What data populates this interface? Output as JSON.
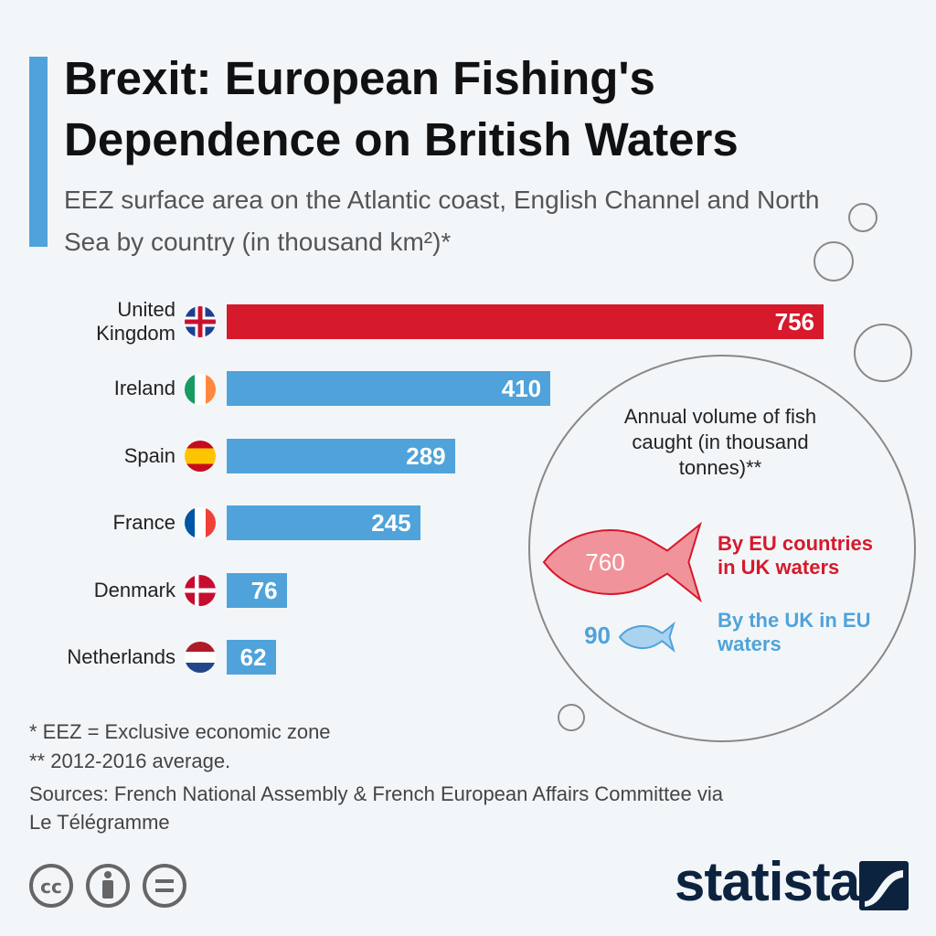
{
  "chart_data": {
    "type": "bar",
    "orientation": "horizontal",
    "title": "Brexit: European Fishing's Dependence on British Waters",
    "subtitle": "EEZ surface area on the Atlantic coast, English Channel and North Sea by country (in thousand km²)*",
    "categories": [
      "United Kingdom",
      "Ireland",
      "Spain",
      "France",
      "Denmark",
      "Netherlands"
    ],
    "values": [
      756,
      410,
      289,
      245,
      76,
      62
    ],
    "colors": [
      "#d6192b",
      "#4fa3da",
      "#4fa3da",
      "#4fa3da",
      "#4fa3da",
      "#4fa3da"
    ],
    "inset": {
      "type": "pictogram",
      "title": "Annual volume of fish caught (in thousand tonnes)**",
      "items": [
        {
          "value": 760,
          "label": "By EU countries in UK waters",
          "color": "#d6192b",
          "fill": "#f0939a"
        },
        {
          "value": 90,
          "label": "By the UK in EU waters",
          "color": "#4fa3da",
          "fill": "#a9d3ef"
        }
      ]
    },
    "notes": [
      "*   EEZ = Exclusive economic zone",
      "** 2012-2016 average."
    ],
    "source": "Sources: French National Assembly & French European Affairs Committee via Le Télégramme",
    "logo": "statista"
  }
}
